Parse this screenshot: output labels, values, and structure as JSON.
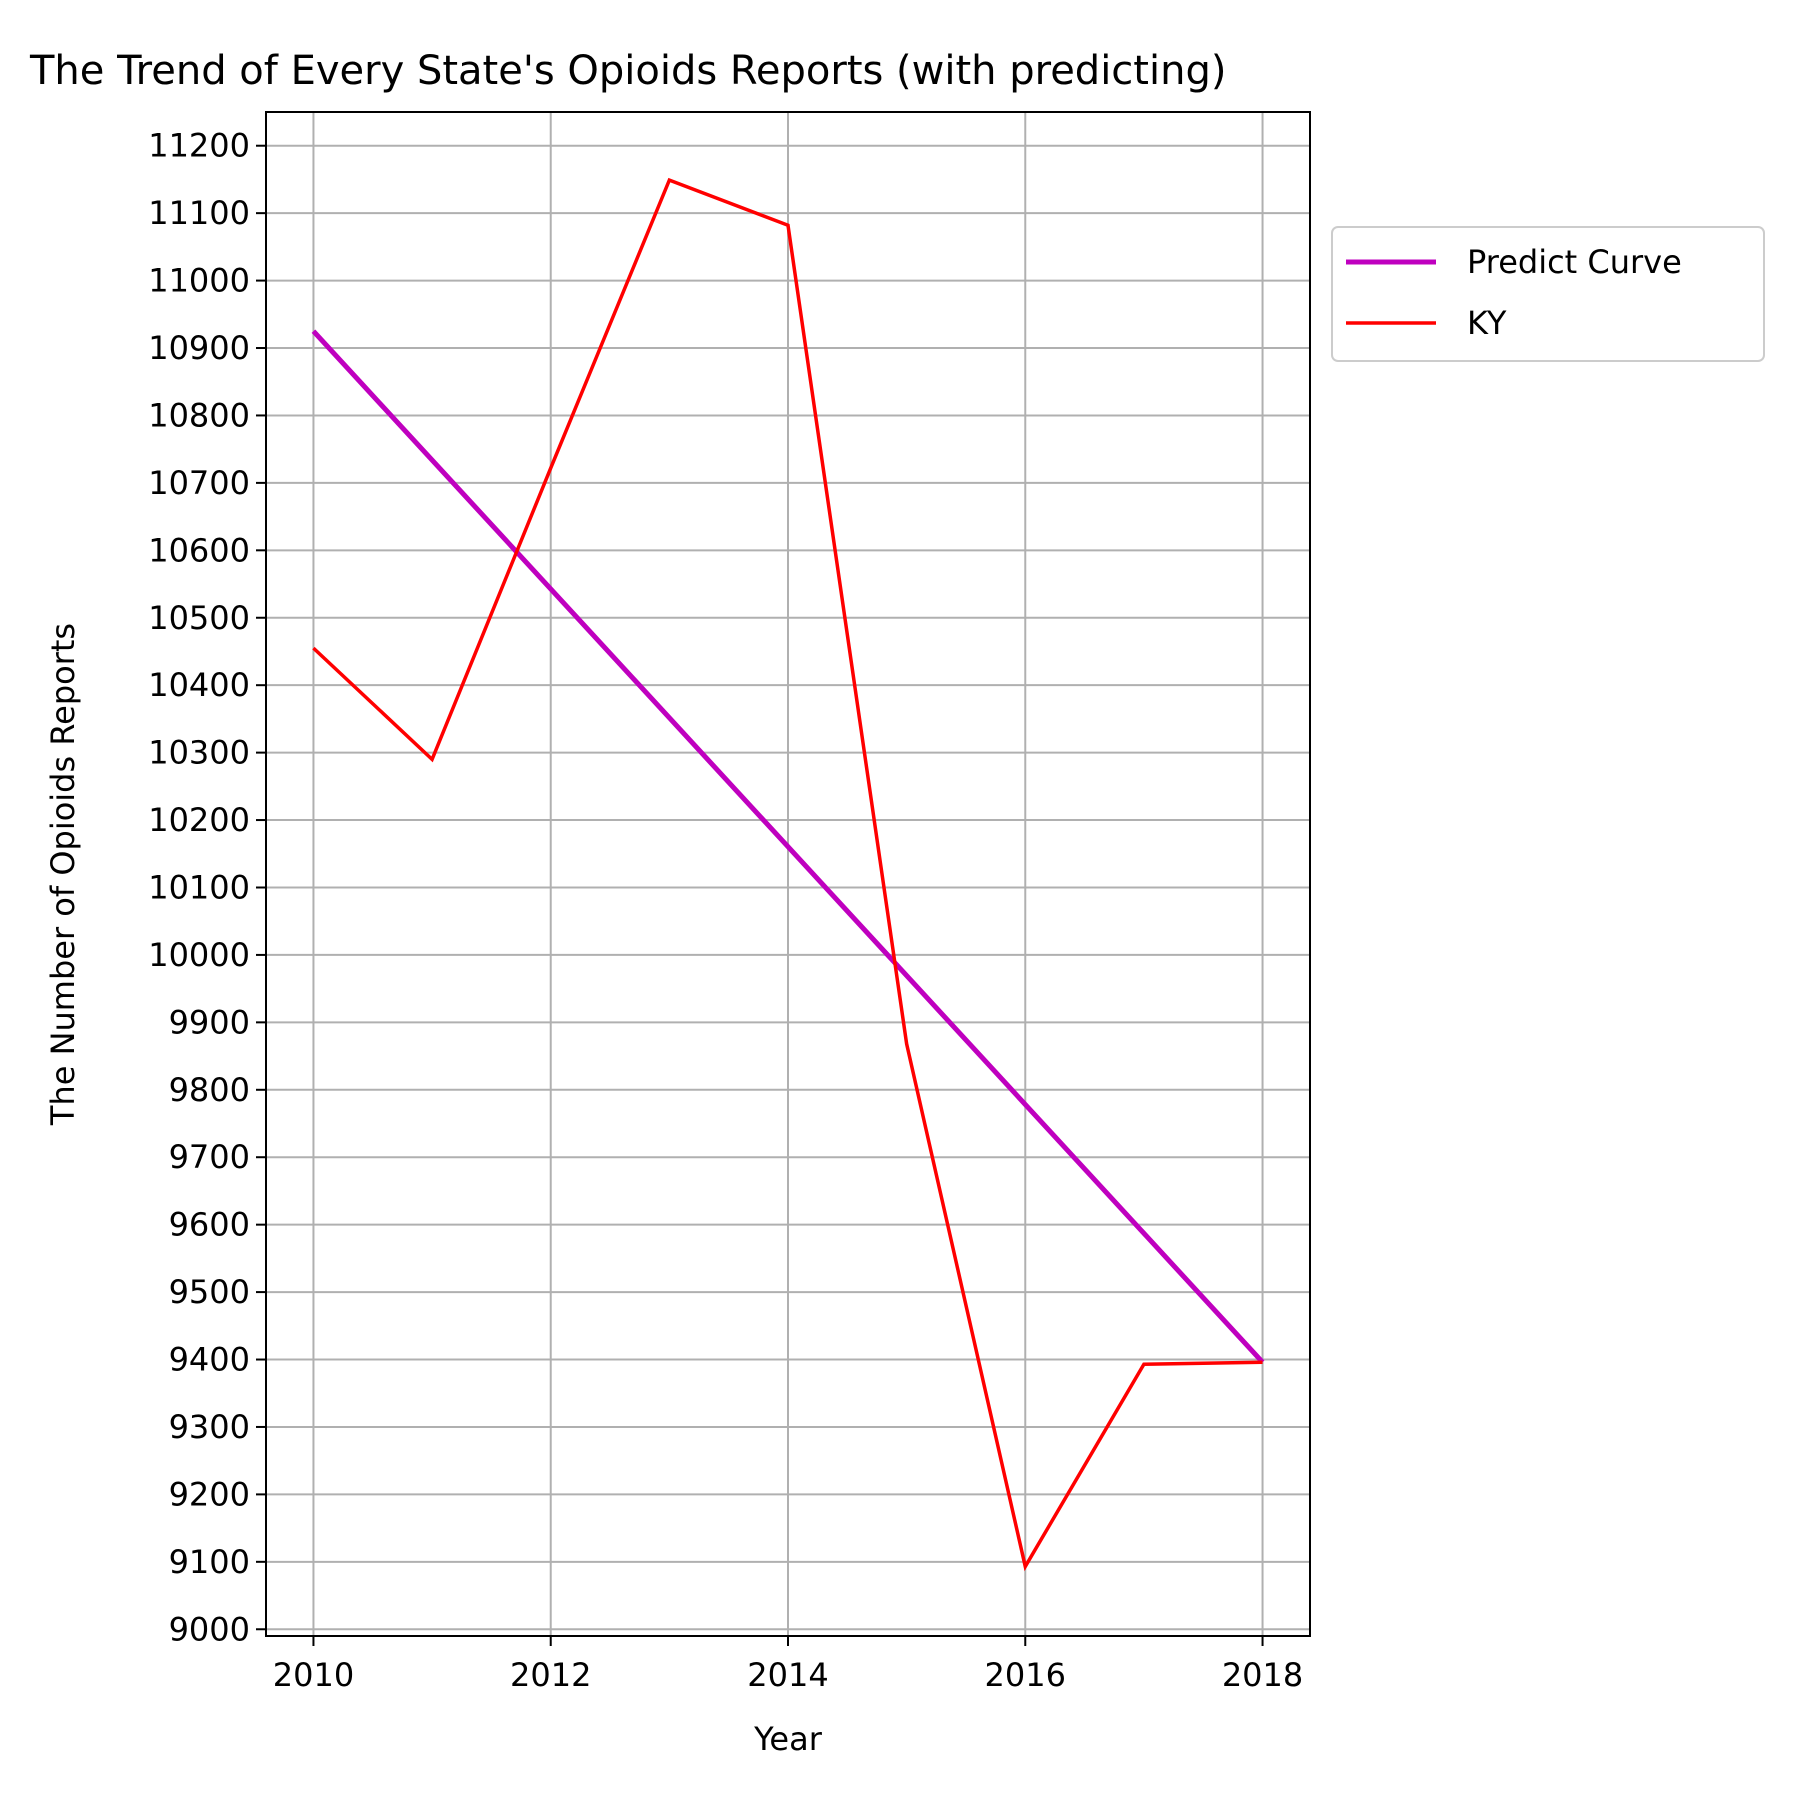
{
  "chart_data": {
    "type": "line",
    "title": "The Trend of Every State's Opioids Reports (with predicting)",
    "xlabel": "Year",
    "ylabel": "The Number of Opioids Reports",
    "xlim": [
      2009.6,
      2018.4
    ],
    "ylim": [
      8990,
      11250
    ],
    "x_ticks": [
      2010,
      2012,
      2014,
      2016,
      2018
    ],
    "y_ticks": [
      9000,
      9100,
      9200,
      9300,
      9400,
      9500,
      9600,
      9700,
      9800,
      9900,
      10000,
      10100,
      10200,
      10300,
      10400,
      10500,
      10600,
      10700,
      10800,
      10900,
      11000,
      11100,
      11200
    ],
    "grid": true,
    "legend_position": "outside-upper-right",
    "series": [
      {
        "name": "Predict Curve",
        "color": "#bf00bf",
        "x": [
          2010,
          2018
        ],
        "y": [
          10925,
          9396
        ]
      },
      {
        "name": "KY",
        "color": "#ff0000",
        "x": [
          2010,
          2011,
          2012,
          2013,
          2014,
          2015,
          2016,
          2017,
          2018
        ],
        "y": [
          10455,
          10290,
          10722,
          11149,
          11082,
          9868,
          9093,
          9393,
          9396
        ]
      }
    ]
  }
}
